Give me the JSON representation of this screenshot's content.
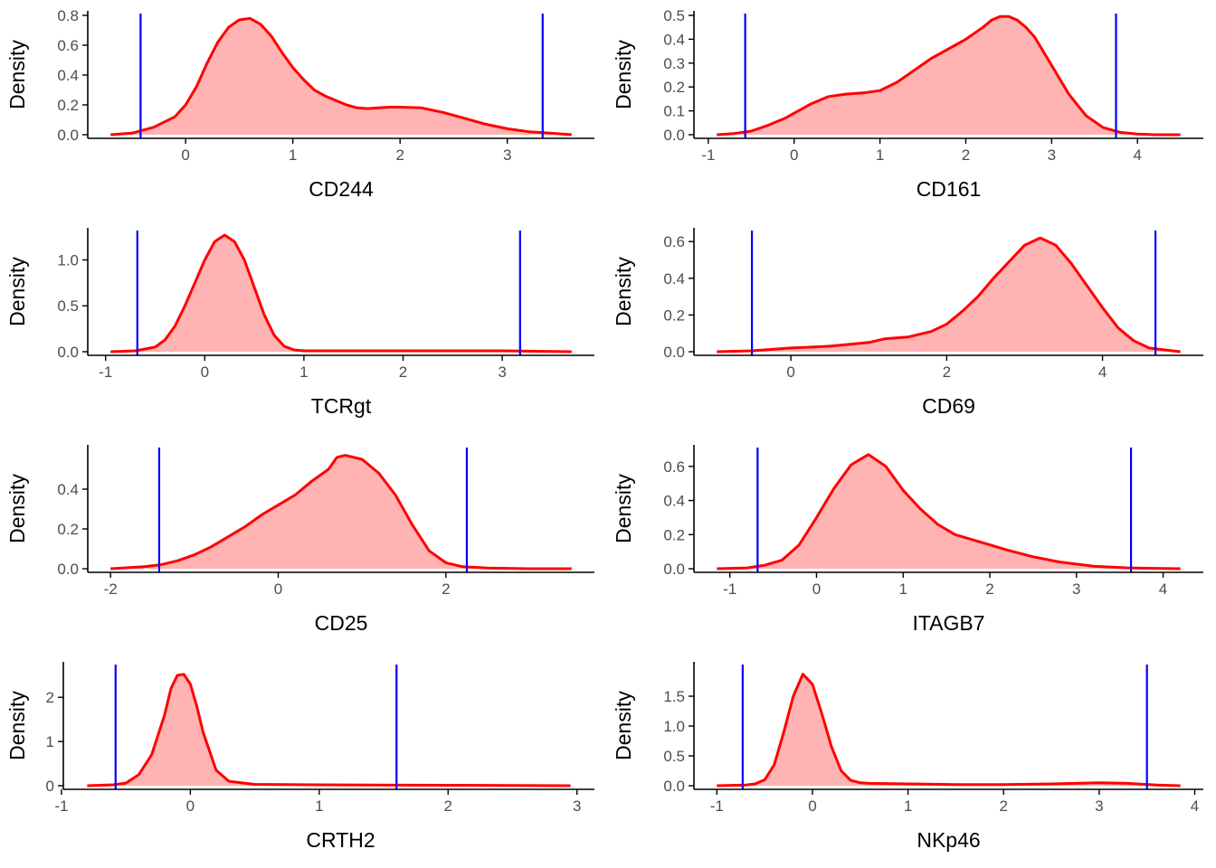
{
  "colors": {
    "fill": "#ffb3b3",
    "line": "#ff0000",
    "vline": "#0000ff",
    "axis": "#000000",
    "tick_text": "#4d4d4d"
  },
  "chart_data": [
    {
      "type": "area",
      "xlabel": "CD244",
      "ylabel": "Density",
      "xlim": [
        -0.7,
        3.6
      ],
      "ylim": [
        0,
        0.8
      ],
      "xticks": [
        0,
        1,
        2,
        3
      ],
      "xtick_labels": [
        "0",
        "1",
        "2",
        "3"
      ],
      "yticks": [
        0,
        0.2,
        0.4,
        0.6,
        0.8
      ],
      "ytick_labels": [
        "0.0",
        "0.2",
        "0.4",
        "0.6",
        "0.8"
      ],
      "vlines": [
        -0.42,
        3.33
      ],
      "x": [
        -0.7,
        -0.5,
        -0.3,
        -0.1,
        0.0,
        0.1,
        0.2,
        0.3,
        0.4,
        0.5,
        0.6,
        0.7,
        0.8,
        0.9,
        1.0,
        1.1,
        1.2,
        1.3,
        1.4,
        1.5,
        1.6,
        1.7,
        1.8,
        1.9,
        2.0,
        2.2,
        2.4,
        2.6,
        2.8,
        3.0,
        3.2,
        3.4,
        3.6
      ],
      "y": [
        0.0,
        0.01,
        0.05,
        0.12,
        0.2,
        0.32,
        0.48,
        0.62,
        0.72,
        0.77,
        0.78,
        0.74,
        0.66,
        0.55,
        0.45,
        0.37,
        0.3,
        0.26,
        0.23,
        0.2,
        0.18,
        0.175,
        0.18,
        0.185,
        0.185,
        0.18,
        0.15,
        0.11,
        0.07,
        0.04,
        0.02,
        0.01,
        0.0
      ]
    },
    {
      "type": "area",
      "xlabel": "CD161",
      "ylabel": "Density",
      "xlim": [
        -0.9,
        4.5
      ],
      "ylim": [
        0,
        0.5
      ],
      "xticks": [
        -1,
        0,
        1,
        2,
        3,
        4
      ],
      "xtick_labels": [
        "-1",
        "0",
        "1",
        "2",
        "3",
        "4"
      ],
      "yticks": [
        0,
        0.1,
        0.2,
        0.3,
        0.4,
        0.5
      ],
      "ytick_labels": [
        "0.0",
        "0.1",
        "0.2",
        "0.3",
        "0.4",
        "0.5"
      ],
      "vlines": [
        -0.57,
        3.75
      ],
      "x": [
        -0.9,
        -0.7,
        -0.5,
        -0.3,
        -0.1,
        0.0,
        0.2,
        0.4,
        0.6,
        0.8,
        1.0,
        1.2,
        1.4,
        1.6,
        1.8,
        2.0,
        2.2,
        2.3,
        2.4,
        2.5,
        2.6,
        2.7,
        2.8,
        3.0,
        3.2,
        3.4,
        3.6,
        3.8,
        4.0,
        4.2,
        4.5
      ],
      "y": [
        0.0,
        0.005,
        0.015,
        0.04,
        0.07,
        0.09,
        0.13,
        0.16,
        0.17,
        0.175,
        0.185,
        0.22,
        0.27,
        0.32,
        0.36,
        0.4,
        0.45,
        0.48,
        0.495,
        0.495,
        0.48,
        0.45,
        0.41,
        0.29,
        0.17,
        0.08,
        0.03,
        0.01,
        0.003,
        0.0,
        0.0
      ]
    },
    {
      "type": "area",
      "xlabel": "TCRgt",
      "ylabel": "Density",
      "xlim": [
        -0.95,
        3.7
      ],
      "ylim": [
        0,
        1.3
      ],
      "xticks": [
        -1,
        0,
        1,
        2,
        3
      ],
      "xtick_labels": [
        "-1",
        "0",
        "1",
        "2",
        "3"
      ],
      "yticks": [
        0,
        0.5,
        1.0
      ],
      "ytick_labels": [
        "0.0",
        "0.5",
        "1.0"
      ],
      "vlines": [
        -0.68,
        3.18
      ],
      "x": [
        -0.95,
        -0.7,
        -0.5,
        -0.4,
        -0.3,
        -0.2,
        -0.1,
        0.0,
        0.1,
        0.2,
        0.3,
        0.4,
        0.5,
        0.6,
        0.7,
        0.8,
        0.9,
        1.0,
        1.5,
        2.0,
        2.5,
        3.0,
        3.7
      ],
      "y": [
        0.0,
        0.01,
        0.05,
        0.13,
        0.28,
        0.5,
        0.75,
        1.0,
        1.2,
        1.27,
        1.2,
        1.0,
        0.7,
        0.4,
        0.18,
        0.06,
        0.02,
        0.01,
        0.01,
        0.01,
        0.01,
        0.01,
        0.0
      ]
    },
    {
      "type": "area",
      "xlabel": "CD69",
      "ylabel": "Density",
      "xlim": [
        -0.95,
        5.0
      ],
      "ylim": [
        0,
        0.65
      ],
      "xticks": [
        0,
        2,
        4
      ],
      "xtick_labels": [
        "0",
        "2",
        "4"
      ],
      "yticks": [
        0,
        0.2,
        0.4,
        0.6
      ],
      "ytick_labels": [
        "0.0",
        "0.2",
        "0.4",
        "0.6"
      ],
      "vlines": [
        -0.5,
        4.68
      ],
      "x": [
        -0.95,
        -0.5,
        0.0,
        0.5,
        1.0,
        1.2,
        1.5,
        1.8,
        2.0,
        2.2,
        2.4,
        2.6,
        2.8,
        3.0,
        3.2,
        3.4,
        3.6,
        3.8,
        4.0,
        4.2,
        4.4,
        4.6,
        4.8,
        5.0
      ],
      "y": [
        0.0,
        0.005,
        0.02,
        0.03,
        0.05,
        0.07,
        0.08,
        0.11,
        0.15,
        0.22,
        0.3,
        0.4,
        0.49,
        0.58,
        0.62,
        0.58,
        0.48,
        0.36,
        0.24,
        0.13,
        0.06,
        0.02,
        0.01,
        0.0
      ]
    },
    {
      "type": "area",
      "xlabel": "CD25",
      "ylabel": "Density",
      "xlim": [
        -2.0,
        3.5
      ],
      "ylim": [
        0,
        0.6
      ],
      "xticks": [
        -2,
        0,
        2
      ],
      "xtick_labels": [
        "-2",
        "0",
        "2"
      ],
      "yticks": [
        0,
        0.2,
        0.4
      ],
      "ytick_labels": [
        "0.0",
        "0.2",
        "0.4"
      ],
      "vlines": [
        -1.42,
        2.25
      ],
      "x": [
        -2.0,
        -1.6,
        -1.4,
        -1.2,
        -1.0,
        -0.8,
        -0.6,
        -0.4,
        -0.2,
        0.0,
        0.2,
        0.4,
        0.6,
        0.7,
        0.8,
        1.0,
        1.2,
        1.4,
        1.6,
        1.8,
        2.0,
        2.2,
        2.5,
        3.0,
        3.5
      ],
      "y": [
        0.0,
        0.01,
        0.02,
        0.04,
        0.07,
        0.11,
        0.16,
        0.21,
        0.27,
        0.32,
        0.37,
        0.44,
        0.5,
        0.56,
        0.57,
        0.55,
        0.48,
        0.37,
        0.22,
        0.09,
        0.03,
        0.01,
        0.003,
        0.0,
        0.0
      ]
    },
    {
      "type": "area",
      "xlabel": "ITAGB7",
      "ylabel": "Density",
      "xlim": [
        -1.15,
        4.2
      ],
      "ylim": [
        0,
        0.7
      ],
      "xticks": [
        -1,
        0,
        1,
        2,
        3,
        4
      ],
      "xtick_labels": [
        "-1",
        "0",
        "1",
        "2",
        "3",
        "4"
      ],
      "yticks": [
        0,
        0.2,
        0.4,
        0.6
      ],
      "ytick_labels": [
        "0.0",
        "0.2",
        "0.4",
        "0.6"
      ],
      "vlines": [
        -0.68,
        3.63
      ],
      "x": [
        -1.15,
        -0.8,
        -0.6,
        -0.4,
        -0.2,
        0.0,
        0.2,
        0.4,
        0.6,
        0.8,
        1.0,
        1.2,
        1.4,
        1.6,
        1.8,
        2.0,
        2.2,
        2.5,
        2.8,
        3.2,
        3.6,
        4.2
      ],
      "y": [
        0.0,
        0.005,
        0.02,
        0.05,
        0.14,
        0.3,
        0.47,
        0.61,
        0.67,
        0.6,
        0.46,
        0.35,
        0.26,
        0.2,
        0.17,
        0.14,
        0.11,
        0.07,
        0.04,
        0.015,
        0.005,
        0.0
      ]
    },
    {
      "type": "area",
      "xlabel": "CRTH2",
      "ylabel": "Density",
      "xlim": [
        -0.8,
        2.95
      ],
      "ylim": [
        0,
        2.7
      ],
      "xticks": [
        -1,
        0,
        1,
        2,
        3
      ],
      "xtick_labels": [
        "-1",
        "0",
        "1",
        "2",
        "3"
      ],
      "yticks": [
        0,
        1,
        2
      ],
      "ytick_labels": [
        "0",
        "1",
        "2"
      ],
      "vlines": [
        -0.58,
        1.6
      ],
      "x": [
        -0.8,
        -0.6,
        -0.5,
        -0.4,
        -0.3,
        -0.2,
        -0.15,
        -0.1,
        -0.05,
        0.0,
        0.05,
        0.1,
        0.2,
        0.3,
        0.5,
        1.0,
        2.0,
        2.95
      ],
      "y": [
        0.0,
        0.02,
        0.06,
        0.25,
        0.7,
        1.6,
        2.2,
        2.5,
        2.52,
        2.3,
        1.8,
        1.2,
        0.35,
        0.1,
        0.03,
        0.02,
        0.01,
        0.0
      ]
    },
    {
      "type": "area",
      "xlabel": "NKp46",
      "ylabel": "Density",
      "xlim": [
        -1.0,
        3.85
      ],
      "ylim": [
        0,
        2.0
      ],
      "xticks": [
        -1,
        0,
        1,
        2,
        3,
        4
      ],
      "xtick_labels": [
        "-1",
        "0",
        "1",
        "2",
        "3",
        "4"
      ],
      "yticks": [
        0,
        0.5,
        1.0,
        1.5
      ],
      "ytick_labels": [
        "0.0",
        "0.5",
        "1.0",
        "1.5"
      ],
      "vlines": [
        -0.73,
        3.5
      ],
      "x": [
        -1.0,
        -0.7,
        -0.6,
        -0.5,
        -0.4,
        -0.3,
        -0.2,
        -0.1,
        0.0,
        0.1,
        0.2,
        0.3,
        0.4,
        0.5,
        0.6,
        1.0,
        1.5,
        2.0,
        2.5,
        3.0,
        3.3,
        3.6,
        3.85
      ],
      "y": [
        0.0,
        0.01,
        0.03,
        0.1,
        0.35,
        0.9,
        1.5,
        1.87,
        1.7,
        1.2,
        0.65,
        0.25,
        0.09,
        0.05,
        0.04,
        0.03,
        0.02,
        0.02,
        0.03,
        0.05,
        0.04,
        0.01,
        0.0
      ]
    }
  ]
}
